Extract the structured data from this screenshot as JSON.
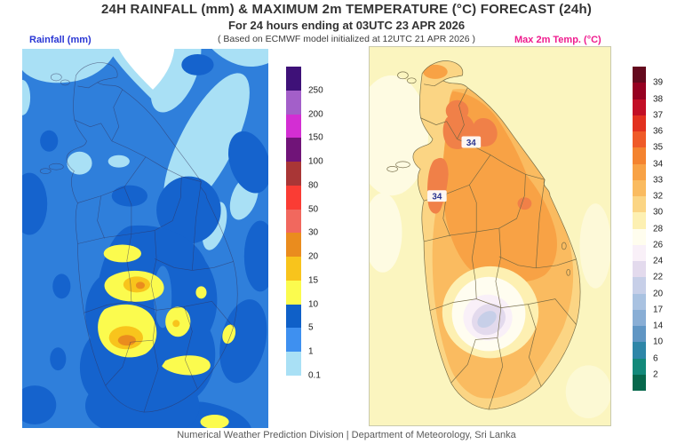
{
  "title": "24H RAINFALL (mm) & MAXIMUM 2m TEMPERATURE (°C) FORECAST (24h)",
  "subtitle": "For 24 hours ending at 03UTC 23 APR 2026",
  "model_note": "( Based on ECMWF model initialized at 12UTC 21 APR 2026 )",
  "footer": "Numerical Weather Prediction Division | Department of Meteorology, Sri Lanka",
  "rainfall_panel": {
    "label": "Rainfall (mm)",
    "label_color": "#2936d4",
    "colorbar": {
      "ticks": [
        "250",
        "200",
        "150",
        "100",
        "80",
        "50",
        "30",
        "20",
        "15",
        "10",
        "5",
        "1",
        "0.1"
      ],
      "colors": [
        "#3E1178",
        "#A35FC9",
        "#D32ED3",
        "#701478",
        "#A93636",
        "#FA3C34",
        "#F1685E",
        "#EA8C1E",
        "#F8C41C",
        "#FBFB4E",
        "#0F60C8",
        "#3E90F0",
        "#A9E0F5"
      ]
    }
  },
  "temperature_panel": {
    "label": "Max 2m Temp. (°C)",
    "label_color": "#ef1b8e",
    "colorbar": {
      "ticks": [
        "39",
        "38",
        "37",
        "36",
        "35",
        "34",
        "33",
        "32",
        "30",
        "28",
        "26",
        "24",
        "22",
        "20",
        "17",
        "14",
        "10",
        "6",
        "2"
      ],
      "colors": [
        "#640A1E",
        "#960121",
        "#C20F26",
        "#E2311F",
        "#EF5A28",
        "#F4832F",
        "#F8A245",
        "#FABB60",
        "#FBD584",
        "#FDF0B2",
        "#FFFDEE",
        "#F9F0F8",
        "#E3DAED",
        "#C7CFE8",
        "#A9C2E1",
        "#89AED5",
        "#6096C4",
        "#2E86A8",
        "#13897A",
        "#07684C"
      ]
    },
    "contour_labels": [
      "34",
      "34"
    ]
  }
}
